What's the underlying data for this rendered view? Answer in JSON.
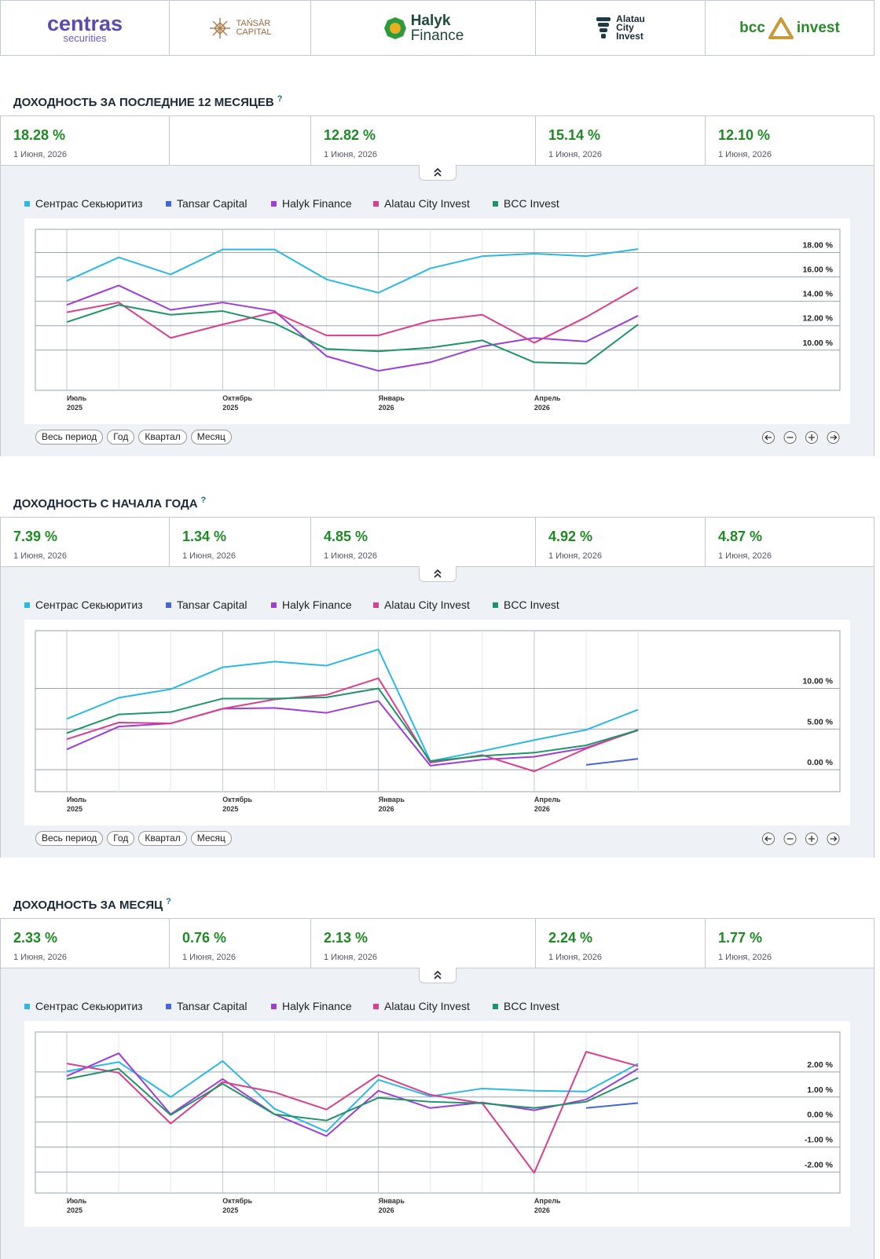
{
  "header": {
    "logos": [
      [
        "centras",
        "securities"
      ],
      [
        "TAŃSĀR",
        "CAPITAL"
      ],
      [
        "Halyk",
        "Finance"
      ],
      [
        "Alatau",
        "City",
        "Invest"
      ],
      [
        "bcc",
        "invest"
      ]
    ]
  },
  "sections": [
    {
      "title": "ДОХОДНОСТЬ ЗА ПОСЛЕДНИЕ 12 МЕСЯЦЕВ",
      "help": "?",
      "stats": [
        {
          "value": "18.28 %",
          "date": "1 Июня, 2026"
        },
        null,
        {
          "value": "12.82 %",
          "date": "1 Июня, 2026"
        },
        {
          "value": "15.14 %",
          "date": "1 Июня, 2026"
        },
        {
          "value": "12.10 %",
          "date": "1 Июня, 2026"
        }
      ],
      "range_buttons": [
        "Весь период",
        "Год",
        "Квартал",
        "Месяц"
      ]
    },
    {
      "title": "ДОХОДНОСТЬ С НАЧАЛА ГОДА",
      "help": "?",
      "stats": [
        {
          "value": "7.39 %",
          "date": "1 Июня, 2026"
        },
        {
          "value": "1.34 %",
          "date": "1 Июня, 2026"
        },
        {
          "value": "4.85 %",
          "date": "1 Июня, 2026"
        },
        {
          "value": "4.92 %",
          "date": "1 Июня, 2026"
        },
        {
          "value": "4.87 %",
          "date": "1 Июня, 2026"
        }
      ],
      "range_buttons": [
        "Весь период",
        "Год",
        "Квартал",
        "Месяц"
      ]
    },
    {
      "title": "ДОХОДНОСТЬ ЗА МЕСЯЦ",
      "help": "?",
      "stats": [
        {
          "value": "2.33 %",
          "date": "1 Июня, 2026"
        },
        {
          "value": "0.76 %",
          "date": "1 Июня, 2026"
        },
        {
          "value": "2.13 %",
          "date": "1 Июня, 2026"
        },
        {
          "value": "2.24 %",
          "date": "1 Июня, 2026"
        },
        {
          "value": "1.77 %",
          "date": "1 Июня, 2026"
        }
      ]
    }
  ],
  "chart_data": [
    {
      "type": "line",
      "categories": [
        "Июль 2025",
        null,
        null,
        "Октябрь 2025",
        null,
        null,
        "Январь 2026",
        null,
        null,
        "Апрель 2026",
        null,
        null
      ],
      "ylim": [
        6.7,
        19.9
      ],
      "yticks": [
        {
          "value": 10,
          "label": "10.00 %"
        },
        {
          "value": 12,
          "label": "12.00 %"
        },
        {
          "value": 14,
          "label": "14.00 %"
        },
        {
          "value": 16,
          "label": "16.00 %"
        },
        {
          "value": 18,
          "label": "18.00 %"
        }
      ],
      "series": [
        {
          "name": "Сентрас Секьюритиз",
          "color": "#2bb8e3",
          "values": [
            15.68,
            17.6,
            16.2,
            18.25,
            18.25,
            15.8,
            14.7,
            16.7,
            17.7,
            17.9,
            17.7,
            18.28
          ]
        },
        {
          "name": "Tansar Capital",
          "color": "#4466dd",
          "values": [
            null,
            null,
            null,
            null,
            null,
            null,
            null,
            null,
            null,
            null,
            null,
            null
          ]
        },
        {
          "name": "Halyk Finance",
          "color": "#9c3fd8",
          "values": [
            13.7,
            15.3,
            13.3,
            13.9,
            13.2,
            9.5,
            8.3,
            9.0,
            10.3,
            11.0,
            10.7,
            12.82
          ]
        },
        {
          "name": "Alatau City Invest",
          "color": "#d93f8e",
          "values": [
            13.1,
            13.9,
            11.0,
            12.1,
            13.1,
            11.2,
            11.2,
            12.4,
            12.9,
            10.6,
            12.7,
            15.14
          ]
        },
        {
          "name": "BCC Invest",
          "color": "#1f9468",
          "values": [
            12.3,
            13.7,
            12.9,
            13.2,
            12.2,
            10.1,
            9.9,
            10.2,
            10.8,
            9.0,
            8.9,
            12.1
          ]
        }
      ]
    },
    {
      "type": "line",
      "categories": [
        "Июль 2025",
        null,
        null,
        "Октябрь 2025",
        null,
        null,
        "Январь 2026",
        null,
        null,
        "Апрель 2026",
        null,
        null
      ],
      "ylim": [
        -2.7,
        17.1
      ],
      "yticks": [
        {
          "value": 0,
          "label": "0.00 %"
        },
        {
          "value": 5,
          "label": "5.00 %"
        },
        {
          "value": 10,
          "label": "10.00 %"
        }
      ],
      "series": [
        {
          "name": "Сентрас Секьюритиз",
          "color": "#2bb8e3",
          "values": [
            6.25,
            8.85,
            9.9,
            12.6,
            13.3,
            12.8,
            14.8,
            1.06,
            2.3,
            3.65,
            4.9,
            7.39
          ]
        },
        {
          "name": "Tansar Capital",
          "color": "#4466dd",
          "values": [
            null,
            null,
            null,
            null,
            null,
            null,
            null,
            null,
            null,
            null,
            0.6,
            1.34
          ]
        },
        {
          "name": "Halyk Finance",
          "color": "#9c3fd8",
          "values": [
            2.5,
            5.3,
            5.7,
            7.5,
            7.6,
            7.0,
            8.46,
            0.5,
            1.25,
            1.6,
            2.7,
            4.85
          ]
        },
        {
          "name": "Alatau City Invest",
          "color": "#d93f8e",
          "values": [
            3.75,
            5.8,
            5.7,
            7.5,
            8.65,
            9.2,
            11.25,
            0.87,
            1.8,
            -0.2,
            2.6,
            4.92
          ]
        },
        {
          "name": "BCC Invest",
          "color": "#1f9468",
          "values": [
            4.5,
            6.8,
            7.1,
            8.75,
            8.75,
            8.9,
            10.0,
            1.06,
            1.7,
            2.1,
            3.0,
            4.87
          ]
        }
      ]
    },
    {
      "type": "line",
      "categories": [
        "Июль 2025",
        null,
        null,
        "Октябрь 2025",
        null,
        null,
        "Январь 2026",
        null,
        null,
        "Апрель 2026",
        null,
        null
      ],
      "ylim": [
        -2.84,
        3.6
      ],
      "yticks": [
        {
          "value": -2,
          "label": "-2.00 %"
        },
        {
          "value": -1,
          "label": "-1.00 %"
        },
        {
          "value": 0,
          "label": "0.00 %"
        },
        {
          "value": 1,
          "label": "1.00 %"
        },
        {
          "value": 2,
          "label": "2.00 %"
        }
      ],
      "series": [
        {
          "name": "Сентрас Секьюритиз",
          "color": "#2bb8e3",
          "values": [
            2.03,
            2.4,
            1.0,
            2.44,
            0.53,
            -0.38,
            1.69,
            1.03,
            1.34,
            1.25,
            1.22,
            2.33
          ]
        },
        {
          "name": "Tansar Capital",
          "color": "#4466dd",
          "values": [
            null,
            null,
            null,
            null,
            null,
            null,
            null,
            null,
            null,
            null,
            0.56,
            0.76
          ]
        },
        {
          "name": "Halyk Finance",
          "color": "#9c3fd8",
          "values": [
            1.84,
            2.75,
            0.31,
            1.72,
            0.31,
            -0.56,
            1.25,
            0.56,
            0.78,
            0.47,
            0.9,
            2.13
          ]
        },
        {
          "name": "Alatau City Invest",
          "color": "#d93f8e",
          "values": [
            2.34,
            1.97,
            -0.06,
            1.6,
            1.19,
            0.5,
            1.88,
            1.09,
            0.75,
            -2.03,
            2.81,
            2.24
          ]
        },
        {
          "name": "BCC Invest",
          "color": "#1f9468",
          "values": [
            1.72,
            2.13,
            0.28,
            1.53,
            0.31,
            0.06,
            0.97,
            0.81,
            0.75,
            0.56,
            0.81,
            1.77
          ]
        }
      ]
    }
  ]
}
